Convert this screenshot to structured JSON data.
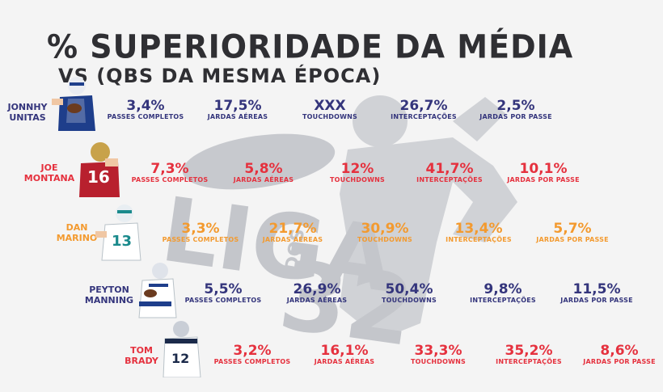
{
  "title": {
    "main": "% SUPERIORIDADE DA MÉDIA",
    "sub": "VS (QBS DA MESMA ÉPOCA)"
  },
  "watermark": {
    "text": "LIGA",
    "number": "32",
    "small": "DOS"
  },
  "colors": {
    "title": "#2f2f33",
    "navy": "#34357c",
    "red": "#e5313e",
    "orange": "#f39a2f",
    "watermark": "#d0d2d6"
  },
  "chart_data": {
    "type": "table",
    "columns": [
      "PASSES COMPLETOS",
      "JARDAS AÉREAS",
      "TOUCHDOWNS",
      "INTERCEPTAÇÕES",
      "JARDAS POR PASSE"
    ],
    "rows": [
      {
        "player_line1": "JONNHY",
        "player_line2": "UNITAS",
        "values": [
          "3,4%",
          "17,5%",
          "XXX",
          "26,7%",
          "2,5%"
        ],
        "color": "#34357c"
      },
      {
        "player_line1": "JOE",
        "player_line2": "MONTANA",
        "values": [
          "7,3%",
          "5,8%",
          "12%",
          "41,7%",
          "10,1%"
        ],
        "color": "#e5313e"
      },
      {
        "player_line1": "DAN",
        "player_line2": "MARINO",
        "values": [
          "3,3%",
          "21,7%",
          "30,9%",
          "13,4%",
          "5,7%"
        ],
        "color": "#f39a2f"
      },
      {
        "player_line1": "PEYTON",
        "player_line2": "MANNING",
        "values": [
          "5,5%",
          "26,9%",
          "50,4%",
          "9,8%",
          "11,5%"
        ],
        "color": "#34357c"
      },
      {
        "player_line1": "TOM",
        "player_line2": "BRADY",
        "values": [
          "3,2%",
          "16,1%",
          "33,3%",
          "35,2%",
          "8,6%"
        ],
        "color": "#e5313e"
      }
    ]
  }
}
